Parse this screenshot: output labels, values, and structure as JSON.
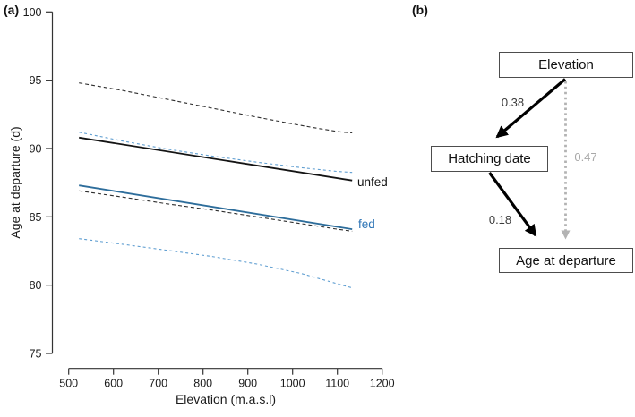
{
  "panel_a": {
    "label": "(a)",
    "colors": {
      "unfed_line": "#141414",
      "fed_line": "#2d6d9b",
      "fed_label_text": "#2e75b6",
      "ci_blue": "#5f9ed1",
      "ci_dark": "#2e2e2e"
    }
  },
  "chart_data": {
    "type": "line",
    "title": "",
    "xlabel": "Elevation (m.a.s.l)",
    "ylabel": "Age at departure (d)",
    "xlim": [
      500,
      1200
    ],
    "ylim": [
      75,
      100
    ],
    "xticks": [
      500,
      600,
      700,
      800,
      900,
      1000,
      1100,
      1200
    ],
    "yticks": [
      75,
      80,
      85,
      90,
      95,
      100
    ],
    "grid": false,
    "legend_position": "inline-right",
    "series": [
      {
        "name": "unfed_mean",
        "label": "unfed",
        "style": "solid",
        "color": "#141414",
        "width": 1.8,
        "x": [
          523,
          1133
        ],
        "y": [
          90.8,
          87.66
        ]
      },
      {
        "name": "fed_mean",
        "label": "fed",
        "style": "solid",
        "color": "#2d6d9b",
        "width": 1.8,
        "x": [
          523,
          1133
        ],
        "y": [
          87.3,
          84.1
        ]
      },
      {
        "name": "unfed_upper_ci",
        "label": "",
        "style": "dashed",
        "color": "#2e2e2e",
        "width": 1.1,
        "dash": "4 3",
        "x": [
          523,
          620,
          720,
          820,
          920,
          1000,
          1060,
          1110,
          1133
        ],
        "y": [
          94.8,
          94.25,
          93.6,
          92.95,
          92.3,
          91.8,
          91.45,
          91.2,
          91.15
        ]
      },
      {
        "name": "unfed_lower_ci",
        "label": "",
        "style": "dashed",
        "color": "#2e2e2e",
        "width": 1.1,
        "dash": "4 3",
        "x": [
          523,
          620,
          720,
          820,
          920,
          1020,
          1100,
          1133
        ],
        "y": [
          86.9,
          86.45,
          85.95,
          85.5,
          85.0,
          84.5,
          84.1,
          83.95
        ]
      },
      {
        "name": "fed_upper_ci",
        "label": "",
        "style": "dashed",
        "color": "#5f9ed1",
        "width": 1.1,
        "dash": "3 3",
        "x": [
          523,
          620,
          720,
          820,
          920,
          1020,
          1100,
          1133
        ],
        "y": [
          91.2,
          90.55,
          89.95,
          89.45,
          89.0,
          88.6,
          88.32,
          88.25
        ]
      },
      {
        "name": "fed_lower_ci",
        "label": "",
        "style": "dashed",
        "color": "#5f9ed1",
        "width": 1.1,
        "dash": "3 3",
        "x": [
          523,
          620,
          720,
          820,
          920,
          1020,
          1100,
          1133
        ],
        "y": [
          83.4,
          83.0,
          82.55,
          82.1,
          81.55,
          80.85,
          80.1,
          79.8
        ]
      }
    ]
  },
  "panel_b": {
    "label": "(b)",
    "nodes": [
      {
        "id": "elevation",
        "label": "Elevation"
      },
      {
        "id": "hatching_date",
        "label": "Hatching date"
      },
      {
        "id": "age_at_departure",
        "label": "Age at departure"
      }
    ],
    "edges": [
      {
        "from": "elevation",
        "to": "hatching_date",
        "coef": "0.38",
        "style": "solid",
        "color": "#000000"
      },
      {
        "from": "hatching_date",
        "to": "age_at_departure",
        "coef": "0.18",
        "style": "solid",
        "color": "#000000"
      },
      {
        "from": "elevation",
        "to": "age_at_departure",
        "coef": "0.47",
        "style": "dotted",
        "color": "#b3b3b3"
      }
    ]
  }
}
